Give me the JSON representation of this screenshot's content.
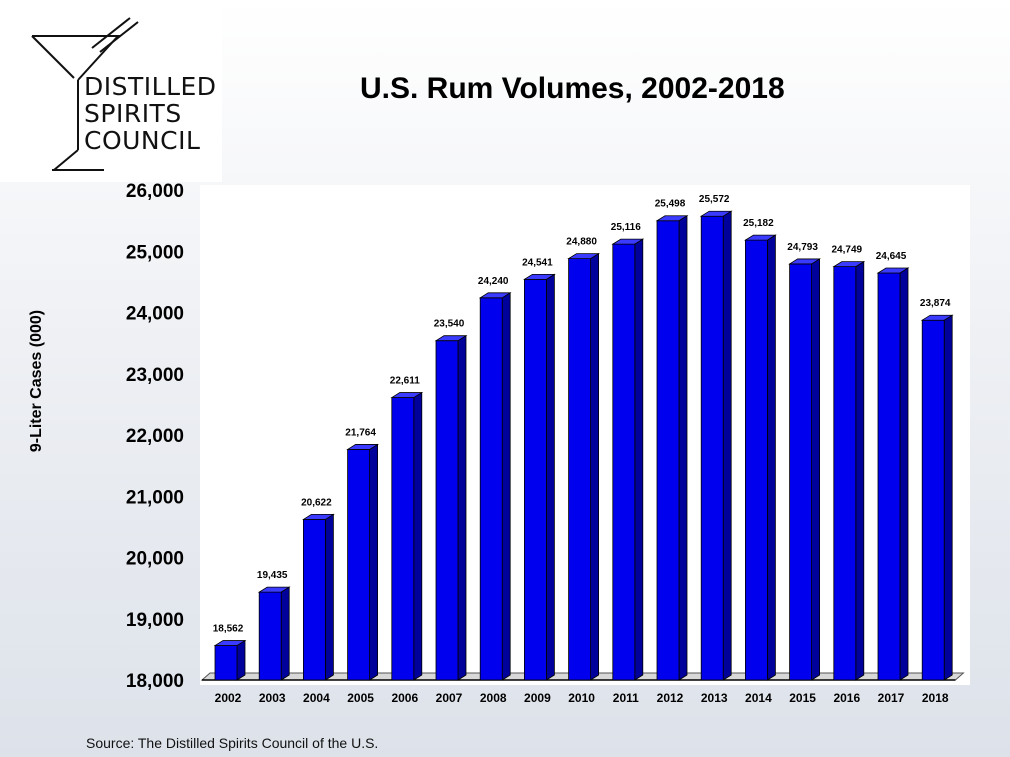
{
  "logo": {
    "line1": "DISTILLED",
    "line2": "SPIRITS",
    "line3": "COUNCIL"
  },
  "source": "Source:  The Distilled Spirits Council of the U.S.",
  "colors": {
    "bar_front": "#0000ee",
    "bar_side": "#00009a",
    "bar_top": "#3b3bff"
  },
  "chart_data": {
    "type": "bar",
    "title": "U.S. Rum Volumes, 2002-2018",
    "xlabel": "",
    "ylabel": "9-Liter Cases (000)",
    "ylim": [
      18000,
      26000
    ],
    "yticks": [
      "18,000",
      "19,000",
      "20,000",
      "21,000",
      "22,000",
      "23,000",
      "24,000",
      "25,000",
      "26,000"
    ],
    "ytick_values": [
      18000,
      19000,
      20000,
      21000,
      22000,
      23000,
      24000,
      25000,
      26000
    ],
    "categories": [
      "2002",
      "2003",
      "2004",
      "2005",
      "2006",
      "2007",
      "2008",
      "2009",
      "2010",
      "2011",
      "2012",
      "2013",
      "2014",
      "2015",
      "2016",
      "2017",
      "2018"
    ],
    "values": [
      18562,
      19435,
      20622,
      21764,
      22611,
      23540,
      24240,
      24541,
      24880,
      25116,
      25498,
      25572,
      25182,
      24793,
      24749,
      24645,
      23874
    ],
    "data_labels": [
      "18,562",
      "19,435",
      "20,622",
      "21,764",
      "22,611",
      "23,540",
      "24,240",
      "24,541",
      "24,880",
      "25,116",
      "25,498",
      "25,572",
      "25,182",
      "24,793",
      "24,749",
      "24,645",
      "23,874"
    ],
    "grid": false,
    "legend": "none"
  }
}
